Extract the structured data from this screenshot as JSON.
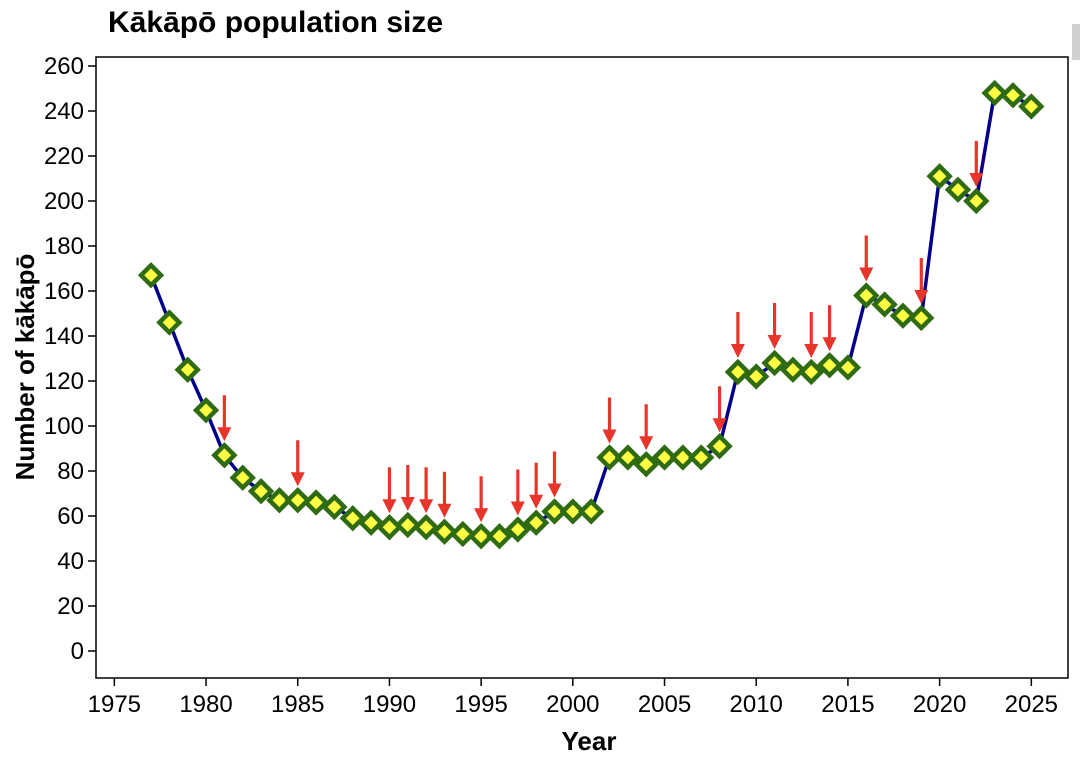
{
  "chart_data": {
    "type": "line",
    "title": "Kākāpō population size",
    "xlabel": "Year",
    "ylabel": "Number of kākāpō",
    "xlim": [
      1974,
      2027
    ],
    "ylim": [
      -12,
      264
    ],
    "xticks": [
      1975,
      1980,
      1985,
      1990,
      1995,
      2000,
      2005,
      2010,
      2015,
      2020,
      2025
    ],
    "yticks": [
      0,
      20,
      40,
      60,
      80,
      100,
      120,
      140,
      160,
      180,
      200,
      220,
      240,
      260
    ],
    "grid": false,
    "legend": "none",
    "series": [
      {
        "x": [
          1977,
          1978,
          1979,
          1980,
          1981,
          1982,
          1983,
          1984,
          1985,
          1986,
          1987,
          1988,
          1989,
          1990,
          1991,
          1992,
          1993,
          1994,
          1995,
          1996,
          1997,
          1998,
          1999,
          2000,
          2001,
          2002,
          2003,
          2004,
          2005,
          2006,
          2007,
          2008,
          2009,
          2010,
          2011,
          2012,
          2013,
          2014,
          2015,
          2016,
          2017,
          2018,
          2019,
          2020,
          2021,
          2022,
          2023,
          2024,
          2025
        ],
        "values": [
          167,
          146,
          125,
          107,
          87,
          77,
          71,
          67,
          67,
          66,
          64,
          59,
          57,
          55,
          56,
          55,
          53,
          52,
          51,
          51,
          54,
          57,
          62,
          62,
          62,
          86,
          86,
          83,
          86,
          86,
          86,
          91,
          124,
          122,
          128,
          125,
          124,
          127,
          126,
          158,
          154,
          149,
          148,
          211,
          205,
          200,
          248,
          247,
          242
        ]
      }
    ],
    "annotations": {
      "kind": "red arrows marking breeding years",
      "years": [
        1981,
        1985,
        1990,
        1991,
        1992,
        1993,
        1995,
        1997,
        1998,
        1999,
        2002,
        2004,
        2008,
        2009,
        2011,
        2013,
        2014,
        2016,
        2019,
        2022
      ]
    },
    "colors": {
      "line": "#00008b",
      "marker_fill": "#ffff44",
      "marker_edge": "#2e6b12",
      "arrow": "#e8352b"
    }
  }
}
